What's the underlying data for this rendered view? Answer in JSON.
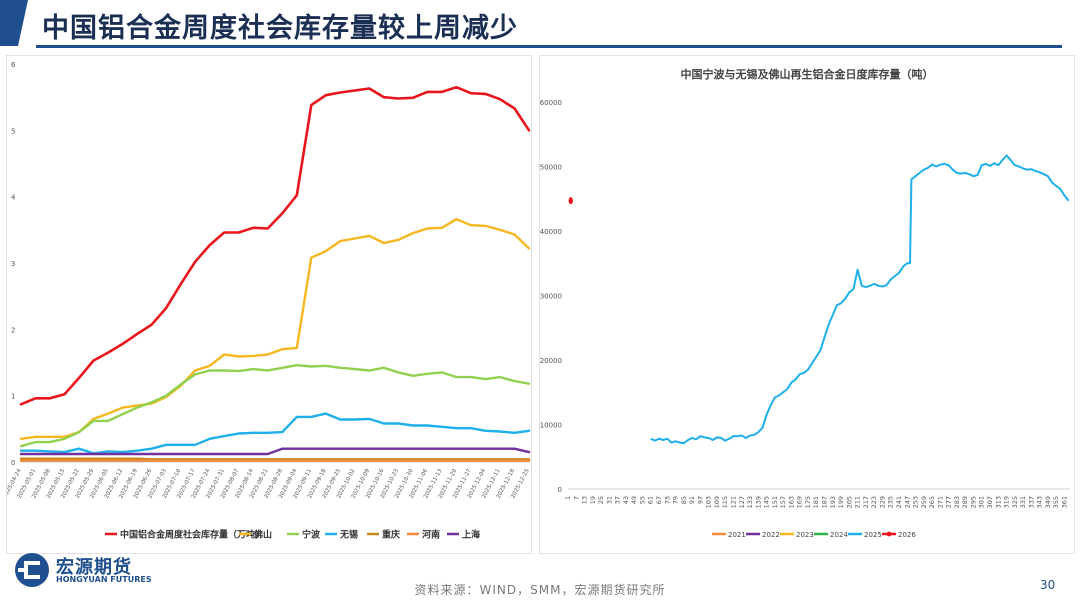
{
  "page": {
    "title": "中国铝合金周度社会库存量较上周减少",
    "source": "资料来源：WIND，SMM，宏源期货研究所",
    "page_number": "30",
    "logo": {
      "cn": "宏源期货",
      "en": "HONGYUAN FUTURES"
    }
  },
  "chart_data": [
    {
      "type": "line",
      "title": "",
      "xlabel": "",
      "ylabel": "",
      "ylim": [
        0,
        6
      ],
      "yticks": [
        0,
        1,
        2,
        3,
        4,
        5,
        6
      ],
      "legend_position": "bottom",
      "categories": [
        "2025-04-24",
        "2025-05-01",
        "2025-05-08",
        "2025-05-15",
        "2025-05-22",
        "2025-05-29",
        "2025-06-05",
        "2025-06-12",
        "2025-06-19",
        "2025-06-26",
        "2025-07-03",
        "2025-07-10",
        "2025-07-17",
        "2025-07-24",
        "2025-07-31",
        "2025-08-07",
        "2025-08-14",
        "2025-08-21",
        "2025-08-28",
        "2025-09-04",
        "2025-09-11",
        "2025-09-18",
        "2025-09-25",
        "2025-10-02",
        "2025-10-09",
        "2025-10-16",
        "2025-10-23",
        "2025-10-30",
        "2025-11-06",
        "2025-11-13",
        "2025-11-20",
        "2025-11-27",
        "2025-12-04",
        "2025-12-11",
        "2025-12-18",
        "2025-12-25"
      ],
      "series": [
        {
          "name": "中国铝合金周度社会库存量（万吨）",
          "color": "#e8161c",
          "values": [
            0.87,
            0.96,
            0.96,
            1.02,
            1.27,
            1.53,
            1.65,
            1.78,
            1.93,
            2.07,
            2.32,
            2.68,
            3.02,
            3.27,
            3.46,
            3.46,
            3.53,
            3.52,
            3.75,
            4.02,
            5.38,
            5.53,
            5.57,
            5.6,
            5.63,
            5.5,
            5.48,
            5.49,
            5.58,
            5.58,
            5.65,
            5.56,
            5.55,
            5.47,
            5.33,
            5.0
          ]
        },
        {
          "name": "佛山",
          "color": "#f5b820",
          "values": [
            0.35,
            0.38,
            0.38,
            0.38,
            0.45,
            0.65,
            0.73,
            0.82,
            0.85,
            0.88,
            0.98,
            1.15,
            1.38,
            1.45,
            1.62,
            1.59,
            1.6,
            1.62,
            1.7,
            1.72,
            3.08,
            3.18,
            3.33,
            3.37,
            3.41,
            3.3,
            3.35,
            3.45,
            3.52,
            3.53,
            3.66,
            3.57,
            3.56,
            3.5,
            3.43,
            3.22
          ]
        },
        {
          "name": "宁波",
          "color": "#92d050",
          "values": [
            0.24,
            0.3,
            0.3,
            0.35,
            0.45,
            0.62,
            0.62,
            0.72,
            0.82,
            0.9,
            1.0,
            1.17,
            1.32,
            1.38,
            1.38,
            1.37,
            1.4,
            1.38,
            1.42,
            1.46,
            1.44,
            1.45,
            1.42,
            1.4,
            1.38,
            1.42,
            1.35,
            1.3,
            1.33,
            1.35,
            1.28,
            1.28,
            1.25,
            1.28,
            1.22,
            1.18
          ]
        },
        {
          "name": "无锡",
          "color": "#1fb0ec",
          "values": [
            0.17,
            0.17,
            0.16,
            0.15,
            0.2,
            0.13,
            0.16,
            0.15,
            0.17,
            0.2,
            0.26,
            0.26,
            0.26,
            0.35,
            0.39,
            0.43,
            0.44,
            0.44,
            0.45,
            0.68,
            0.68,
            0.73,
            0.64,
            0.64,
            0.65,
            0.58,
            0.58,
            0.55,
            0.55,
            0.53,
            0.51,
            0.51,
            0.47,
            0.46,
            0.44,
            0.47
          ]
        },
        {
          "name": "重庆",
          "color": "#c6881a",
          "values": [
            0.05,
            0.05,
            0.05,
            0.05,
            0.05,
            0.05,
            0.05,
            0.05,
            0.05,
            0.04,
            0.04,
            0.04,
            0.04,
            0.04,
            0.04,
            0.04,
            0.04,
            0.04,
            0.04,
            0.04,
            0.04,
            0.04,
            0.04,
            0.04,
            0.04,
            0.04,
            0.04,
            0.04,
            0.04,
            0.04,
            0.04,
            0.04,
            0.04,
            0.04,
            0.04,
            0.04
          ]
        },
        {
          "name": "河南",
          "color": "#f08a3c",
          "values": [
            0.02,
            0.02,
            0.02,
            0.02,
            0.02,
            0.02,
            0.02,
            0.02,
            0.02,
            0.02,
            0.02,
            0.02,
            0.02,
            0.02,
            0.02,
            0.02,
            0.02,
            0.02,
            0.02,
            0.02,
            0.02,
            0.02,
            0.02,
            0.02,
            0.02,
            0.02,
            0.02,
            0.02,
            0.02,
            0.02,
            0.02,
            0.02,
            0.02,
            0.02,
            0.02,
            0.02
          ]
        },
        {
          "name": "上海",
          "color": "#7030a0",
          "values": [
            0.12,
            0.12,
            0.12,
            0.12,
            0.12,
            0.12,
            0.12,
            0.12,
            0.12,
            0.12,
            0.12,
            0.12,
            0.12,
            0.12,
            0.12,
            0.12,
            0.12,
            0.12,
            0.2,
            0.2,
            0.2,
            0.2,
            0.2,
            0.2,
            0.2,
            0.2,
            0.2,
            0.2,
            0.2,
            0.2,
            0.2,
            0.2,
            0.2,
            0.2,
            0.2,
            0.15
          ]
        }
      ]
    },
    {
      "type": "line",
      "title": "中国宁波与无锡及佛山再生铝合金日度库存量（吨）",
      "xlabel": "",
      "ylabel": "",
      "ylim": [
        0,
        60000
      ],
      "yticks": [
        0,
        10000,
        20000,
        30000,
        40000,
        50000,
        60000
      ],
      "xlim": [
        1,
        365
      ],
      "xticks": [
        1,
        7,
        13,
        19,
        25,
        31,
        37,
        43,
        49,
        55,
        61,
        67,
        73,
        79,
        85,
        91,
        97,
        103,
        109,
        115,
        121,
        127,
        133,
        139,
        145,
        151,
        157,
        163,
        169,
        175,
        181,
        187,
        193,
        199,
        205,
        211,
        217,
        223,
        229,
        235,
        241,
        247,
        253,
        259,
        265,
        271,
        277,
        283,
        289,
        295,
        301,
        307,
        313,
        319,
        325,
        331,
        337,
        343,
        349,
        355,
        361
      ],
      "legend_position": "bottom",
      "series": [
        {
          "name": "2021",
          "color": "#f08a3c",
          "points": []
        },
        {
          "name": "2022",
          "color": "#7030a0",
          "points": []
        },
        {
          "name": "2023",
          "color": "#f5b820",
          "points": []
        },
        {
          "name": "2024",
          "color": "#2db34a",
          "points": []
        },
        {
          "name": "2025",
          "color": "#1fb0ec",
          "points": [
            [
              61,
              7800
            ],
            [
              64,
              7500
            ],
            [
              67,
              7800
            ],
            [
              70,
              7600
            ],
            [
              73,
              7800
            ],
            [
              76,
              7200
            ],
            [
              79,
              7400
            ],
            [
              82,
              7200
            ],
            [
              85,
              7100
            ],
            [
              88,
              7600
            ],
            [
              91,
              7900
            ],
            [
              94,
              7700
            ],
            [
              97,
              8200
            ],
            [
              100,
              8000
            ],
            [
              103,
              7900
            ],
            [
              106,
              7600
            ],
            [
              109,
              8000
            ],
            [
              112,
              7900
            ],
            [
              115,
              7500
            ],
            [
              118,
              7800
            ],
            [
              121,
              8200
            ],
            [
              124,
              8200
            ],
            [
              127,
              8300
            ],
            [
              130,
              7900
            ],
            [
              133,
              8300
            ],
            [
              136,
              8400
            ],
            [
              139,
              8800
            ],
            [
              142,
              9500
            ],
            [
              145,
              11500
            ],
            [
              148,
              13000
            ],
            [
              151,
              14200
            ],
            [
              154,
              14500
            ],
            [
              157,
              15000
            ],
            [
              160,
              15500
            ],
            [
              163,
              16500
            ],
            [
              166,
              17000
            ],
            [
              169,
              17800
            ],
            [
              172,
              18000
            ],
            [
              175,
              18500
            ],
            [
              178,
              19500
            ],
            [
              181,
              20500
            ],
            [
              184,
              21500
            ],
            [
              187,
              23500
            ],
            [
              190,
              25500
            ],
            [
              193,
              27000
            ],
            [
              196,
              28500
            ],
            [
              199,
              28800
            ],
            [
              202,
              29500
            ],
            [
              205,
              30500
            ],
            [
              208,
              31000
            ],
            [
              211,
              34000
            ],
            [
              214,
              31500
            ],
            [
              217,
              31300
            ],
            [
              220,
              31500
            ],
            [
              223,
              31800
            ],
            [
              226,
              31500
            ],
            [
              229,
              31400
            ],
            [
              232,
              31600
            ],
            [
              235,
              32500
            ],
            [
              238,
              33000
            ],
            [
              241,
              33500
            ],
            [
              244,
              34500
            ],
            [
              247,
              35000
            ],
            [
              249,
              35000
            ],
            [
              250,
              48000
            ],
            [
              253,
              48500
            ],
            [
              256,
              49000
            ],
            [
              259,
              49500
            ],
            [
              262,
              49800
            ],
            [
              265,
              50300
            ],
            [
              268,
              50000
            ],
            [
              271,
              50300
            ],
            [
              274,
              50400
            ],
            [
              277,
              50200
            ],
            [
              280,
              49500
            ],
            [
              283,
              49000
            ],
            [
              286,
              48900
            ],
            [
              289,
              49000
            ],
            [
              292,
              48800
            ],
            [
              295,
              48500
            ],
            [
              298,
              48700
            ],
            [
              301,
              50200
            ],
            [
              304,
              50400
            ],
            [
              307,
              50100
            ],
            [
              310,
              50500
            ],
            [
              313,
              50200
            ],
            [
              316,
              51000
            ],
            [
              319,
              51700
            ],
            [
              322,
              51000
            ],
            [
              325,
              50200
            ],
            [
              328,
              50000
            ],
            [
              331,
              49700
            ],
            [
              334,
              49500
            ],
            [
              337,
              49600
            ],
            [
              340,
              49300
            ],
            [
              343,
              49100
            ],
            [
              346,
              48800
            ],
            [
              349,
              48500
            ],
            [
              352,
              47500
            ],
            [
              355,
              47000
            ],
            [
              358,
              46500
            ],
            [
              361,
              45500
            ],
            [
              364,
              44700
            ]
          ]
        },
        {
          "name": "2026",
          "color": "#e8161c",
          "points": [
            [
              3,
              44700
            ]
          ]
        }
      ]
    }
  ]
}
